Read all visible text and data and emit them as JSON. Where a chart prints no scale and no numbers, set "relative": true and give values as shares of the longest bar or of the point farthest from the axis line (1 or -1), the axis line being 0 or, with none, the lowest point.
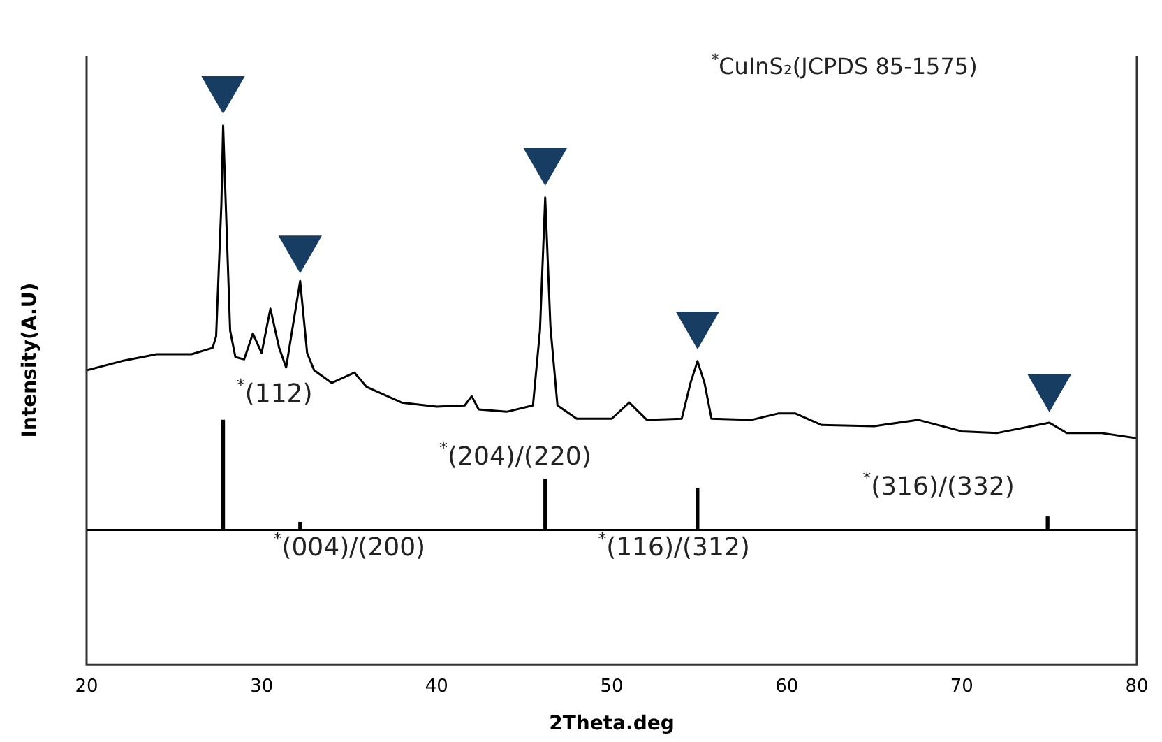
{
  "chart_data": {
    "type": "line",
    "xlabel": "2Theta.deg",
    "ylabel": "Intensity(A.U)",
    "relative": true,
    "xlim": [
      20,
      80
    ],
    "xticks": [
      20,
      30,
      40,
      50,
      60,
      70,
      80
    ],
    "grid": false,
    "legend": false,
    "tick_labels": "x",
    "series": [
      {
        "color": "#000000",
        "marker": "none",
        "x": [
          20,
          22,
          24,
          26,
          27.2,
          27.4,
          27.7,
          27.8,
          27.95,
          28.2,
          28.5,
          29,
          29.5,
          30,
          30.5,
          31,
          31.4,
          32.2,
          32.6,
          33,
          34,
          35.3,
          36,
          38,
          40,
          41.6,
          42,
          42.4,
          44,
          45.5,
          45.9,
          46.2,
          46.5,
          46.9,
          48,
          50,
          51,
          52,
          54,
          54.5,
          54.9,
          55.3,
          55.7,
          58,
          59.5,
          60.5,
          62,
          65,
          67.5,
          70,
          72,
          75,
          76,
          78,
          80
        ],
        "values": [
          0.511,
          0.527,
          0.539,
          0.539,
          0.55,
          0.57,
          0.8,
          0.936,
          0.8,
          0.58,
          0.534,
          0.53,
          0.575,
          0.541,
          0.618,
          0.55,
          0.516,
          0.666,
          0.541,
          0.511,
          0.489,
          0.507,
          0.482,
          0.455,
          0.448,
          0.45,
          0.466,
          0.443,
          0.439,
          0.45,
          0.58,
          0.811,
          0.586,
          0.45,
          0.427,
          0.427,
          0.455,
          0.425,
          0.427,
          0.489,
          0.527,
          0.489,
          0.427,
          0.425,
          0.436,
          0.436,
          0.416,
          0.414,
          0.425,
          0.405,
          0.402,
          0.42,
          0.402,
          0.402,
          0.393
        ]
      },
      {
        "type": "bar",
        "axis": "y2",
        "color": "#000000",
        "x": [
          27.8,
          32.2,
          46.2,
          54.9,
          74.9
        ],
        "values": [
          1,
          0.07,
          0.46,
          0.38,
          0.12
        ]
      },
      {
        "type": "scatter",
        "color": "#173d63",
        "marker": "triangle",
        "x": [
          27.8,
          32.2,
          46.2,
          54.9,
          75
        ],
        "values": [
          1.0,
          0.723,
          0.875,
          0.591,
          0.482
        ]
      }
    ],
    "annotations": [
      "$^{*}$CuInS₂(JCPDS 85-1575)",
      "$^{*}$(112)",
      "$^{*}$(204)/(220)",
      "$^{*}$(316)/(332)",
      "$^{*}$(004)/(200)",
      "$^{*}$(116)/(312)"
    ]
  }
}
